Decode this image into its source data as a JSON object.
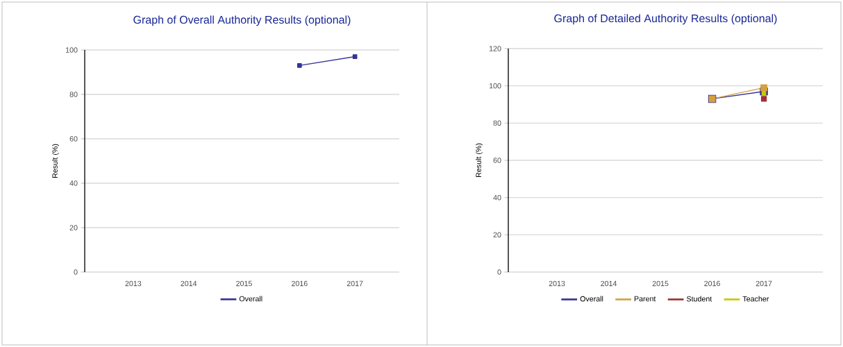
{
  "chart_data": [
    {
      "type": "line",
      "title": "Graph of Overall Authority Results (optional)",
      "ylabel": "Result (%)",
      "categories": [
        "2013",
        "2014",
        "2015",
        "2016",
        "2017"
      ],
      "ylim": [
        0,
        100
      ],
      "yticks": [
        0,
        20,
        40,
        60,
        80,
        100
      ],
      "grid": "y",
      "legend": "bottom",
      "marker": "square",
      "line_style": "solid",
      "series": [
        {
          "name": "Overall",
          "color": "#333399",
          "values": [
            null,
            null,
            null,
            93,
            97
          ]
        }
      ]
    },
    {
      "type": "line",
      "title": "Graph of Detailed Authority Results (optional)",
      "ylabel": "Result (%)",
      "categories": [
        "2013",
        "2014",
        "2015",
        "2016",
        "2017"
      ],
      "ylim": [
        0,
        120
      ],
      "yticks": [
        0,
        20,
        40,
        60,
        80,
        100,
        120
      ],
      "grid": "y",
      "legend": "bottom",
      "marker": "square",
      "line_style": "solid",
      "series": [
        {
          "name": "Overall",
          "color": "#333399",
          "values": [
            null,
            null,
            null,
            93,
            97
          ]
        },
        {
          "name": "Parent",
          "color": "#d4a040",
          "values": [
            null,
            null,
            null,
            93,
            99
          ]
        },
        {
          "name": "Student",
          "color": "#a03030",
          "values": [
            null,
            null,
            null,
            null,
            93
          ]
        },
        {
          "name": "Teacher",
          "color": "#c8c800",
          "values": [
            null,
            null,
            null,
            null,
            96
          ]
        }
      ]
    }
  ]
}
